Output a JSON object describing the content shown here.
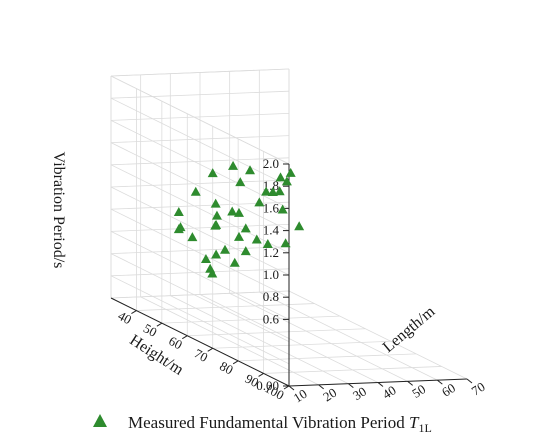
{
  "chart_data": {
    "type": "scatter3d",
    "xlabel": "Length/m",
    "ylabel": "Height/m",
    "zlabel": "Vibration Period/s",
    "xlim": [
      10,
      70
    ],
    "ylim": [
      30,
      100
    ],
    "zlim": [
      0,
      2.0
    ],
    "x_ticks": [
      "10",
      "20",
      "30",
      "40",
      "50",
      "60",
      "70"
    ],
    "y_ticks": [
      "40",
      "50",
      "60",
      "70",
      "80",
      "90",
      "100"
    ],
    "z_ticks": [
      "0.00",
      "0.6",
      "0.8",
      "1.0",
      "1.2",
      "1.4",
      "1.6",
      "1.8",
      "2.0"
    ],
    "marker_color": "#2e8b2e",
    "grid": true,
    "legend": {
      "position": "bottom",
      "text_main": "Measured Fundamental Vibration Period ",
      "text_symbol": "T",
      "text_sub": "1L"
    },
    "series": [
      {
        "name": "Measured Fundamental Vibration Period T1L",
        "marker": "triangle",
        "points": [
          {
            "x": 12,
            "y": 55,
            "z": 0.92
          },
          {
            "x": 14,
            "y": 52,
            "z": 1.02
          },
          {
            "x": 20,
            "y": 45,
            "z": 0.78
          },
          {
            "x": 22,
            "y": 48,
            "z": 0.74
          },
          {
            "x": 18,
            "y": 58,
            "z": 0.66
          },
          {
            "x": 16,
            "y": 62,
            "z": 0.62
          },
          {
            "x": 15,
            "y": 64,
            "z": 0.6
          },
          {
            "x": 24,
            "y": 55,
            "z": 0.66
          },
          {
            "x": 28,
            "y": 50,
            "z": 0.86
          },
          {
            "x": 30,
            "y": 48,
            "z": 0.84
          },
          {
            "x": 27,
            "y": 55,
            "z": 0.7
          },
          {
            "x": 26,
            "y": 60,
            "z": 0.64
          },
          {
            "x": 35,
            "y": 42,
            "z": 0.96
          },
          {
            "x": 32,
            "y": 46,
            "z": 0.9
          },
          {
            "x": 36,
            "y": 50,
            "z": 0.75
          },
          {
            "x": 34,
            "y": 55,
            "z": 0.68
          },
          {
            "x": 38,
            "y": 45,
            "z": 0.92
          },
          {
            "x": 40,
            "y": 48,
            "z": 0.8
          },
          {
            "x": 42,
            "y": 50,
            "z": 0.72
          },
          {
            "x": 44,
            "y": 52,
            "z": 0.7
          },
          {
            "x": 45,
            "y": 40,
            "z": 1.12
          },
          {
            "x": 50,
            "y": 38,
            "z": 1.2
          },
          {
            "x": 48,
            "y": 44,
            "z": 0.98
          },
          {
            "x": 52,
            "y": 42,
            "z": 1.05
          },
          {
            "x": 55,
            "y": 45,
            "z": 0.92
          },
          {
            "x": 56,
            "y": 40,
            "z": 1.02
          },
          {
            "x": 60,
            "y": 38,
            "z": 1.0
          },
          {
            "x": 58,
            "y": 48,
            "z": 0.8
          },
          {
            "x": 62,
            "y": 36,
            "z": 1.1
          },
          {
            "x": 65,
            "y": 35,
            "z": 1.05
          },
          {
            "x": 68,
            "y": 33,
            "z": 1.1
          },
          {
            "x": 30,
            "y": 40,
            "z": 1.05
          },
          {
            "x": 40,
            "y": 35,
            "z": 1.15
          },
          {
            "x": 46,
            "y": 36,
            "z": 1.22
          },
          {
            "x": 42,
            "y": 43,
            "z": 0.88
          },
          {
            "x": 50,
            "y": 52,
            "z": 0.7
          }
        ]
      }
    ]
  }
}
